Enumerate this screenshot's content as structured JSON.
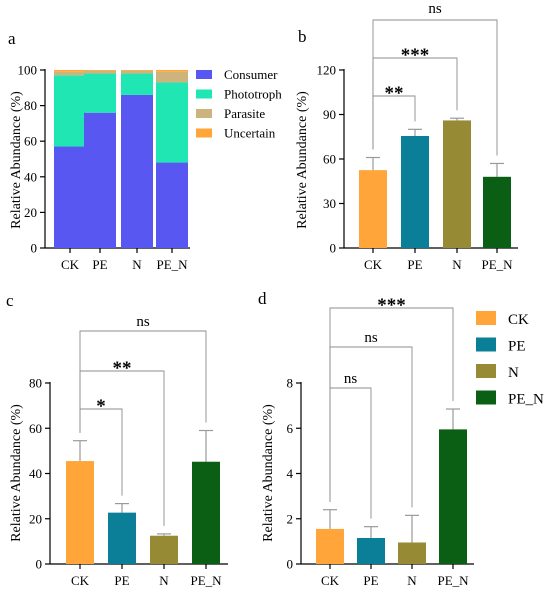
{
  "colors": {
    "CK": "#FFA53A",
    "PE": "#0B7F98",
    "N": "#978A35",
    "PE_N": "#0B5F14",
    "Consumer": "#5857F2",
    "Phototroph": "#20E6B4",
    "Parasite": "#CDB47C",
    "Uncertain": "#FFA53A"
  },
  "chart_data": [
    {
      "panel": "a",
      "type": "bar",
      "stacked": true,
      "categories": [
        "CK",
        "PE",
        "N",
        "PE_N"
      ],
      "ylabel": "Relative Abundance (%)",
      "ylim": [
        0,
        100
      ],
      "yticks": [
        "0",
        "20",
        "40",
        "60",
        "80",
        "100"
      ],
      "series": [
        {
          "name": "Consumer",
          "values": [
            57,
            76,
            86,
            48
          ]
        },
        {
          "name": "Phototroph",
          "values": [
            40,
            22,
            12,
            45
          ]
        },
        {
          "name": "Parasite",
          "values": [
            2,
            1.5,
            1.5,
            6
          ]
        },
        {
          "name": "Uncertain",
          "values": [
            1,
            0.5,
            0.5,
            1
          ]
        }
      ],
      "legend": [
        "Consumer",
        "Phototroph",
        "Parasite",
        "Uncertain"
      ]
    },
    {
      "panel": "b",
      "type": "bar",
      "categories": [
        "CK",
        "PE",
        "N",
        "PE_N"
      ],
      "values": [
        52.5,
        75.5,
        86,
        48
      ],
      "errors": [
        8.5,
        4.5,
        1.5,
        9
      ],
      "ylabel": "Relative Abundance (%)",
      "ylim": [
        0,
        120
      ],
      "yticks": [
        "0",
        "30",
        "60",
        "90",
        "120"
      ],
      "comparisons": [
        {
          "to": "PE",
          "label": "**"
        },
        {
          "to": "N",
          "label": "***"
        },
        {
          "to": "PE_N",
          "label": "ns"
        }
      ]
    },
    {
      "panel": "c",
      "type": "bar",
      "categories": [
        "CK",
        "PE",
        "N",
        "PE_N"
      ],
      "values": [
        45.5,
        22.7,
        12.5,
        45.2
      ],
      "errors": [
        9,
        4,
        0.8,
        13.8
      ],
      "ylabel": "Relative Abundance (%)",
      "ylim": [
        0,
        80
      ],
      "yticks": [
        "0",
        "20",
        "40",
        "60",
        "80"
      ],
      "comparisons": [
        {
          "to": "PE",
          "label": "*"
        },
        {
          "to": "N",
          "label": "**"
        },
        {
          "to": "PE_N",
          "label": "ns"
        }
      ]
    },
    {
      "panel": "d",
      "type": "bar",
      "categories": [
        "CK",
        "PE",
        "N",
        "PE_N"
      ],
      "values": [
        1.55,
        1.15,
        0.95,
        5.95
      ],
      "errors": [
        0.85,
        0.5,
        1.2,
        0.9
      ],
      "ylabel": "Relative Abundance (%)",
      "ylim": [
        0,
        8
      ],
      "yticks": [
        "0",
        "2",
        "4",
        "6",
        "8"
      ],
      "comparisons": [
        {
          "to": "PE",
          "label": "ns"
        },
        {
          "to": "N",
          "label": "ns"
        },
        {
          "to": "PE_N",
          "label": "***"
        }
      ],
      "legend": [
        "CK",
        "PE",
        "N",
        "PE_N"
      ]
    }
  ]
}
